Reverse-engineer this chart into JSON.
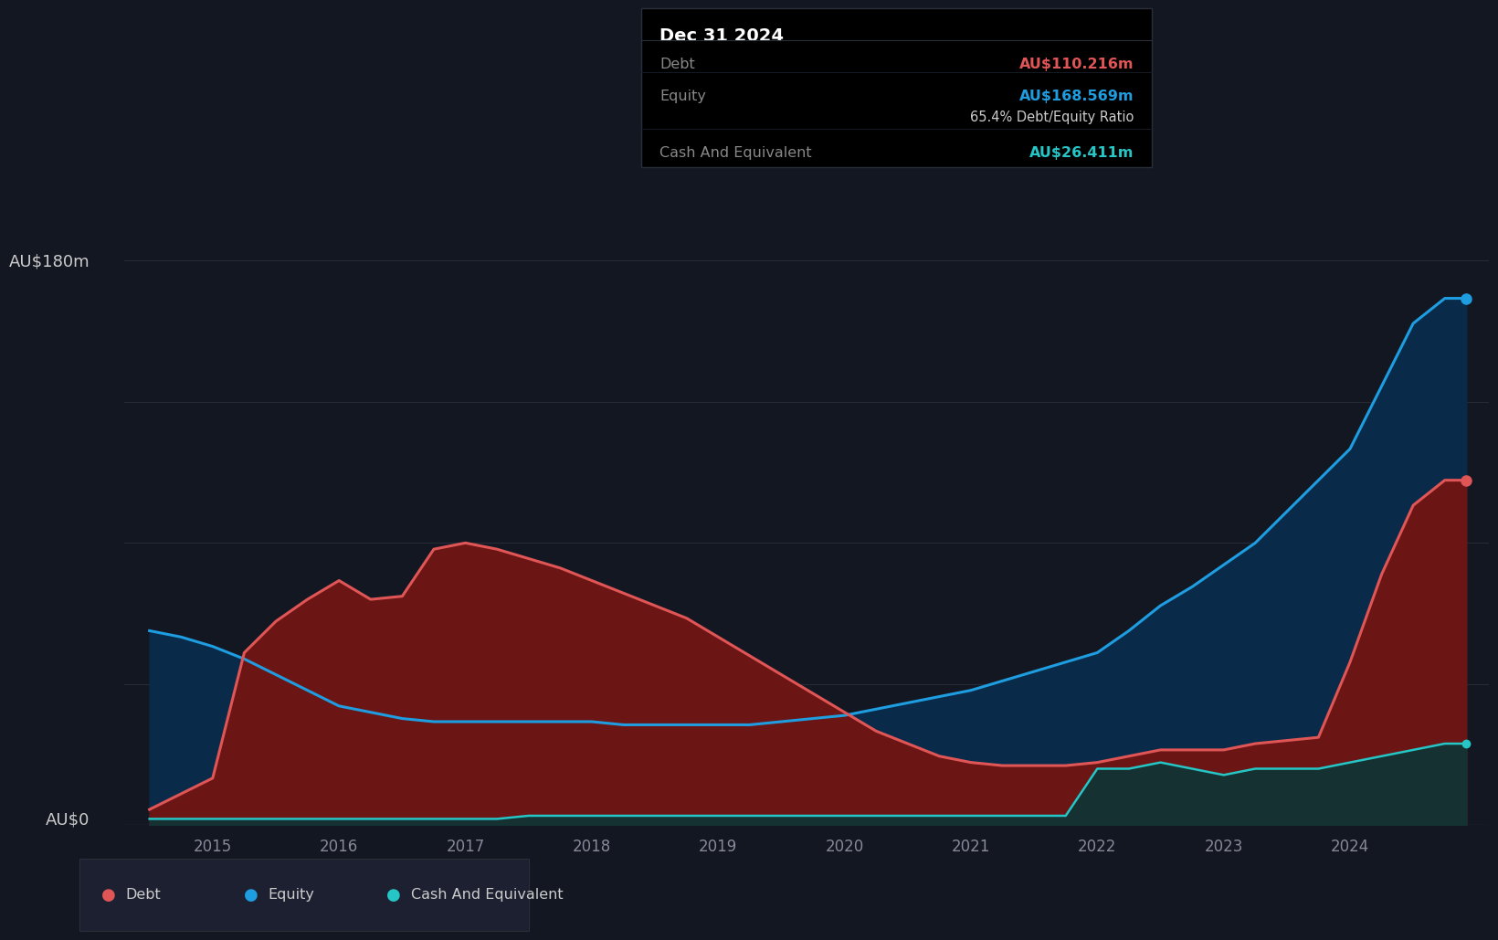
{
  "background_color": "#131722",
  "plot_bg_color": "#131722",
  "grid_color": "#2a2e39",
  "title_text": "Dec 31 2024",
  "tooltip_debt_label": "Debt",
  "tooltip_debt_value": "AU$110.216m",
  "tooltip_equity_label": "Equity",
  "tooltip_equity_value": "AU$168.569m",
  "tooltip_ratio": "65.4% Debt/Equity Ratio",
  "tooltip_cash_label": "Cash And Equivalent",
  "tooltip_cash_value": "AU$26.411m",
  "debt_color": "#e05555",
  "equity_color": "#1e9de0",
  "cash_color": "#26c6c6",
  "debt_fill_color": "#6b1515",
  "equity_fill_color": "#0a2a4a",
  "cash_fill_color": "#0d3535",
  "ylabel_180": "AU$180m",
  "ylabel_0": "AU$0",
  "legend_debt": "Debt",
  "legend_equity": "Equity",
  "legend_cash": "Cash And Equivalent",
  "ylim": [
    0,
    190
  ],
  "years": [
    2014.5,
    2014.75,
    2015.0,
    2015.25,
    2015.5,
    2015.75,
    2016.0,
    2016.25,
    2016.5,
    2016.75,
    2017.0,
    2017.25,
    2017.5,
    2017.75,
    2018.0,
    2018.25,
    2018.5,
    2018.75,
    2019.0,
    2019.25,
    2019.5,
    2019.75,
    2020.0,
    2020.25,
    2020.5,
    2020.75,
    2021.0,
    2021.25,
    2021.5,
    2021.75,
    2022.0,
    2022.25,
    2022.5,
    2022.75,
    2023.0,
    2023.25,
    2023.5,
    2023.75,
    2024.0,
    2024.25,
    2024.5,
    2024.75,
    2024.92
  ],
  "debt": [
    5,
    10,
    15,
    55,
    65,
    72,
    78,
    72,
    73,
    88,
    90,
    88,
    85,
    82,
    78,
    74,
    70,
    66,
    60,
    54,
    48,
    42,
    36,
    30,
    26,
    22,
    20,
    19,
    19,
    19,
    20,
    22,
    24,
    24,
    24,
    26,
    27,
    28,
    52,
    80,
    102,
    110,
    110
  ],
  "equity": [
    62,
    60,
    57,
    53,
    48,
    43,
    38,
    36,
    34,
    33,
    33,
    33,
    33,
    33,
    33,
    32,
    32,
    32,
    32,
    32,
    33,
    34,
    35,
    37,
    39,
    41,
    43,
    46,
    49,
    52,
    55,
    62,
    70,
    76,
    83,
    90,
    100,
    110,
    120,
    140,
    160,
    168,
    168
  ],
  "cash": [
    2,
    2,
    2,
    2,
    2,
    2,
    2,
    2,
    2,
    2,
    2,
    2,
    3,
    3,
    3,
    3,
    3,
    3,
    3,
    3,
    3,
    3,
    3,
    3,
    3,
    3,
    3,
    3,
    3,
    3,
    18,
    18,
    20,
    18,
    16,
    18,
    18,
    18,
    20,
    22,
    24,
    26,
    26
  ],
  "xtick_years": [
    2015,
    2016,
    2017,
    2018,
    2019,
    2020,
    2021,
    2022,
    2023,
    2024
  ],
  "ytick_vals": [
    0,
    45,
    90,
    135,
    180
  ],
  "xlim_min": 2014.3,
  "xlim_max": 2025.1
}
